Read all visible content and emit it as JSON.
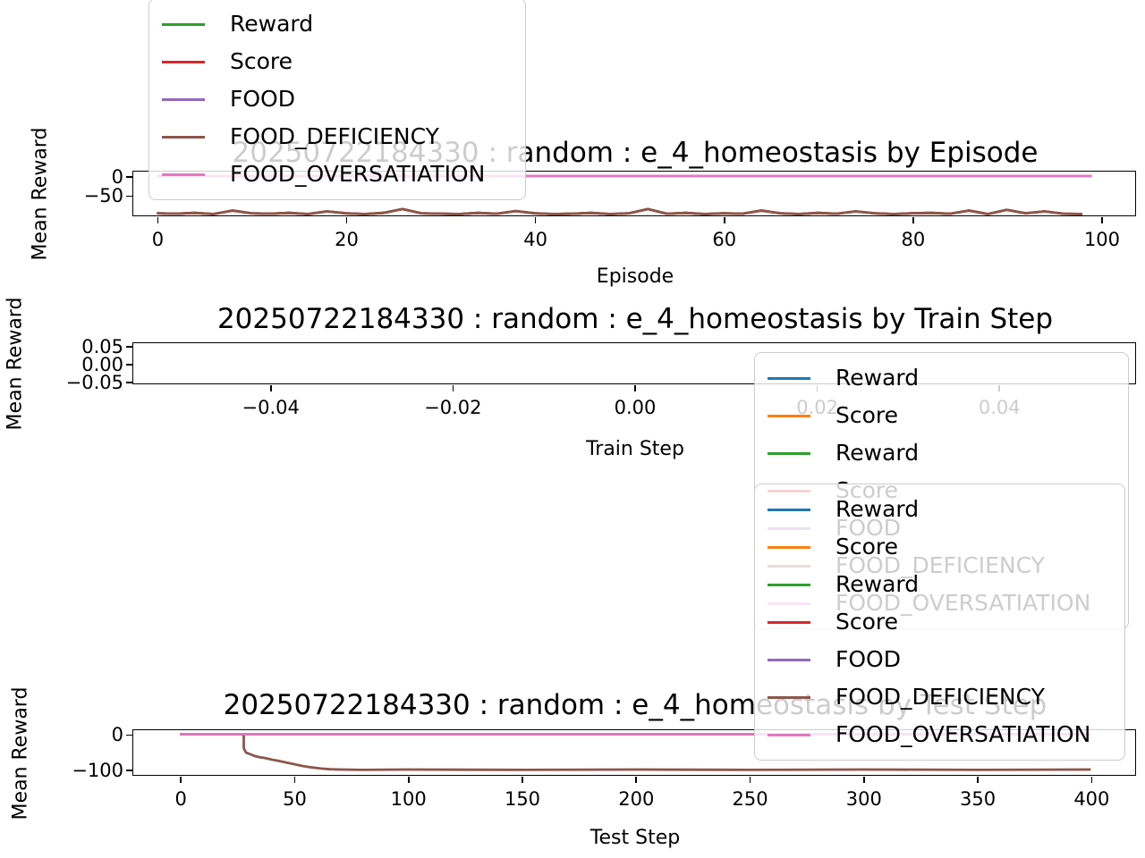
{
  "figure": {
    "background": "#ffffff"
  },
  "chart_data": {
    "type": "line",
    "charts": [
      {
        "title": "20250722184330 : random : e_4_homeostasis by Episode",
        "xlabel": "Episode",
        "ylabel": "Mean Reward",
        "xlim": [
          -2.5,
          103.6
        ],
        "ylim": [
          -102.5,
          11.5
        ],
        "grid": false,
        "xticks": {
          "values": [
            0,
            20,
            40,
            60,
            80,
            100
          ],
          "labels": [
            "0",
            "20",
            "40",
            "60",
            "80",
            "100"
          ]
        },
        "yticks": {
          "values": [
            0,
            -50
          ],
          "labels": [
            "0",
            "−50"
          ]
        },
        "series": [
          {
            "name": "Reward",
            "color": "#2ca02c",
            "x": [
              0,
              2,
              4,
              6,
              8,
              10,
              12,
              14,
              16,
              18,
              20,
              22,
              24,
              26,
              28,
              30,
              32,
              34,
              36,
              38,
              40,
              42,
              44,
              46,
              48,
              50,
              52,
              54,
              56,
              58,
              60,
              62,
              64,
              66,
              68,
              70,
              72,
              74,
              76,
              78,
              80,
              82,
              84,
              86,
              88,
              90,
              92,
              94,
              96,
              98
            ],
            "y": [
              -97,
              -98,
              -96,
              -99,
              -90,
              -97,
              -98,
              -96,
              -99,
              -92,
              -97,
              -99,
              -96,
              -86,
              -97,
              -98,
              -99,
              -96,
              -98,
              -91,
              -97,
              -99,
              -98,
              -96,
              -99,
              -97,
              -86,
              -98,
              -96,
              -99,
              -97,
              -98,
              -90,
              -97,
              -99,
              -96,
              -98,
              -92,
              -97,
              -99,
              -97,
              -96,
              -98,
              -90,
              -99,
              -88,
              -97,
              -92,
              -98,
              -99
            ]
          },
          {
            "name": "Score",
            "color": "#d62728",
            "x": [
              0,
              2,
              4,
              6,
              8,
              10,
              12,
              14,
              16,
              18,
              20,
              22,
              24,
              26,
              28,
              30,
              32,
              34,
              36,
              38,
              40,
              42,
              44,
              46,
              48,
              50,
              52,
              54,
              56,
              58,
              60,
              62,
              64,
              66,
              68,
              70,
              72,
              74,
              76,
              78,
              80,
              82,
              84,
              86,
              88,
              90,
              92,
              94,
              96,
              98
            ],
            "y": [
              -97,
              -98,
              -96,
              -99,
              -90,
              -97,
              -98,
              -96,
              -99,
              -92,
              -97,
              -99,
              -96,
              -86,
              -97,
              -98,
              -99,
              -96,
              -98,
              -91,
              -97,
              -99,
              -98,
              -96,
              -99,
              -97,
              -86,
              -98,
              -96,
              -99,
              -97,
              -98,
              -90,
              -97,
              -99,
              -96,
              -98,
              -92,
              -97,
              -99,
              -97,
              -96,
              -98,
              -90,
              -99,
              -88,
              -97,
              -92,
              -98,
              -99
            ]
          },
          {
            "name": "FOOD",
            "color": "#9467bd",
            "x": [
              0,
              99
            ],
            "y": [
              0,
              0
            ]
          },
          {
            "name": "FOOD_DEFICIENCY",
            "color": "#8c564b",
            "x": [
              0,
              2,
              4,
              6,
              8,
              10,
              12,
              14,
              16,
              18,
              20,
              22,
              24,
              26,
              28,
              30,
              32,
              34,
              36,
              38,
              40,
              42,
              44,
              46,
              48,
              50,
              52,
              54,
              56,
              58,
              60,
              62,
              64,
              66,
              68,
              70,
              72,
              74,
              76,
              78,
              80,
              82,
              84,
              86,
              88,
              90,
              92,
              94,
              96,
              98
            ],
            "y": [
              -97,
              -98,
              -96,
              -99,
              -90,
              -97,
              -98,
              -96,
              -99,
              -92,
              -97,
              -99,
              -96,
              -86,
              -97,
              -98,
              -99,
              -96,
              -98,
              -91,
              -97,
              -99,
              -98,
              -96,
              -99,
              -97,
              -86,
              -98,
              -96,
              -99,
              -97,
              -98,
              -90,
              -97,
              -99,
              -96,
              -98,
              -92,
              -97,
              -99,
              -97,
              -96,
              -98,
              -90,
              -99,
              -88,
              -97,
              -92,
              -98,
              -99
            ]
          },
          {
            "name": "FOOD_OVERSATIATION",
            "color": "#e377c2",
            "x": [
              0,
              99
            ],
            "y": [
              0,
              0
            ]
          }
        ]
      },
      {
        "title": "20250722184330 : random : e_4_homeostasis by Train Step",
        "xlabel": "Train Step",
        "ylabel": "Mean Reward",
        "xlim": [
          -0.055,
          0.055
        ],
        "ylim": [
          -0.055,
          0.0575
        ],
        "grid": false,
        "xticks": {
          "values": [
            -0.04,
            -0.02,
            0.0,
            0.02,
            0.04
          ],
          "labels": [
            "−0.04",
            "−0.02",
            "0.00",
            "0.02",
            "0.04"
          ]
        },
        "yticks": {
          "values": [
            0.05,
            0.0,
            -0.05
          ],
          "labels": [
            "0.05",
            "0.00",
            "−0.05"
          ]
        },
        "series": [
          {
            "name": "Reward",
            "color": "#1f77b4",
            "x": [],
            "y": []
          },
          {
            "name": "Score",
            "color": "#ff7f0e",
            "x": [],
            "y": []
          },
          {
            "name": "Reward",
            "color": "#2ca02c",
            "x": [],
            "y": []
          },
          {
            "name": "Score",
            "color": "#d62728",
            "x": [],
            "y": []
          },
          {
            "name": "FOOD",
            "color": "#9467bd",
            "x": [],
            "y": []
          },
          {
            "name": "FOOD_DEFICIENCY",
            "color": "#8c564b",
            "x": [],
            "y": []
          },
          {
            "name": "FOOD_OVERSATIATION",
            "color": "#e377c2",
            "x": [],
            "y": []
          }
        ]
      },
      {
        "title": "20250722184330 : random : e_4_homeostasis by Test Step",
        "xlabel": "Test Step",
        "ylabel": "Mean Reward",
        "xlim": [
          -20.5,
          419.5
        ],
        "ylim": [
          -115,
          11
        ],
        "grid": false,
        "xticks": {
          "values": [
            0,
            50,
            100,
            150,
            200,
            250,
            300,
            350,
            400
          ],
          "labels": [
            "0",
            "50",
            "100",
            "150",
            "200",
            "250",
            "300",
            "350",
            "400"
          ]
        },
        "yticks": {
          "values": [
            0,
            -100
          ],
          "labels": [
            "0",
            "−100"
          ]
        },
        "series": [
          {
            "name": "Reward",
            "color": "#1f77b4",
            "x": [
              0,
              400
            ],
            "y": [
              0,
              0
            ]
          },
          {
            "name": "Score",
            "color": "#ff7f0e",
            "x": [
              0,
              400
            ],
            "y": [
              0,
              0
            ]
          },
          {
            "name": "Reward",
            "color": "#2ca02c",
            "x": [
              0,
              400
            ],
            "y": [
              0,
              0
            ]
          },
          {
            "name": "Score",
            "color": "#d62728",
            "x": [
              0,
              400
            ],
            "y": [
              0,
              0
            ]
          },
          {
            "name": "FOOD",
            "color": "#9467bd",
            "x": [
              0,
              400
            ],
            "y": [
              0,
              0
            ]
          },
          {
            "name": "FOOD_DEFICIENCY",
            "color": "#8c564b",
            "x": [
              0,
              27,
              28,
              28,
              29,
              31,
              33,
              35,
              37,
              39,
              41,
              43,
              45,
              48,
              51,
              54,
              58,
              62,
              66,
              70,
              80,
              100,
              150,
              200,
              250,
              300,
              350,
              400
            ],
            "y": [
              0,
              0,
              -3,
              -40,
              -52,
              -57,
              -62,
              -65,
              -67,
              -70,
              -73,
              -75,
              -78,
              -82,
              -86,
              -90,
              -94,
              -97,
              -99,
              -100,
              -101,
              -100,
              -101,
              -100,
              -101,
              -100,
              -101,
              -100
            ]
          },
          {
            "name": "FOOD_OVERSATIATION",
            "color": "#e377c2",
            "x": [
              0,
              400
            ],
            "y": [
              0,
              0
            ]
          }
        ]
      }
    ]
  },
  "legends": [
    {
      "id": "episode-chart-legend",
      "entries": [
        {
          "label": "Reward",
          "color": "#2ca02c"
        },
        {
          "label": "Score",
          "color": "#d62728"
        },
        {
          "label": "FOOD",
          "color": "#9467bd"
        },
        {
          "label": "FOOD_DEFICIENCY",
          "color": "#8c564b"
        },
        {
          "label": "FOOD_OVERSATIATION",
          "color": "#e377c2"
        }
      ]
    },
    {
      "id": "train-step-chart-legend",
      "entries": [
        {
          "label": "Reward",
          "color": "#1f77b4"
        },
        {
          "label": "Score",
          "color": "#ff7f0e"
        },
        {
          "label": "Reward",
          "color": "#2ca02c"
        },
        {
          "label": "Score",
          "color": "#d62728"
        },
        {
          "label": "FOOD",
          "color": "#9467bd"
        },
        {
          "label": "FOOD_DEFICIENCY",
          "color": "#8c564b"
        },
        {
          "label": "FOOD_OVERSATIATION",
          "color": "#e377c2"
        }
      ]
    },
    {
      "id": "test-step-chart-legend",
      "entries": [
        {
          "label": "Reward",
          "color": "#1f77b4"
        },
        {
          "label": "Score",
          "color": "#ff7f0e"
        },
        {
          "label": "Reward",
          "color": "#2ca02c"
        },
        {
          "label": "Score",
          "color": "#d62728"
        },
        {
          "label": "FOOD",
          "color": "#9467bd"
        },
        {
          "label": "FOOD_DEFICIENCY",
          "color": "#8c564b"
        },
        {
          "label": "FOOD_OVERSATIATION",
          "color": "#e377c2"
        }
      ]
    }
  ]
}
